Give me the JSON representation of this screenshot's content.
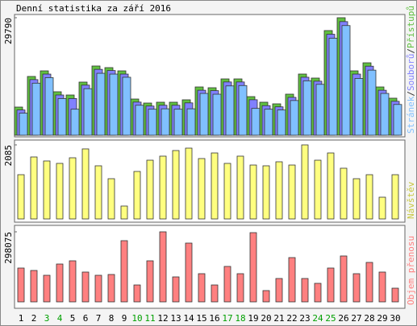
{
  "chart_data": [
    {
      "type": "bar",
      "title": "Denní statistika za září 2016",
      "legend_separator": "/",
      "series": [
        {
          "name": "Přístupů",
          "color": "#60c040",
          "values": [
            7140,
            14900,
            16320,
            11020,
            10200,
            13470,
            17550,
            17140,
            16320,
            9180,
            8160,
            8370,
            8370,
            8980,
            12240,
            12040,
            14280,
            14280,
            9790,
            8370,
            7960,
            10410,
            15510,
            14490,
            26530,
            29790,
            16320,
            18360,
            12240,
            9390
          ]
        },
        {
          "name": "Souborů",
          "color": "#8080ff",
          "values": [
            6400,
            14100,
            15500,
            10200,
            9300,
            12700,
            16700,
            16400,
            15500,
            8400,
            7400,
            7600,
            7600,
            8200,
            11400,
            11300,
            13500,
            13500,
            9000,
            7500,
            7200,
            9600,
            14700,
            13700,
            25600,
            28800,
            15500,
            17500,
            11400,
            8600
          ]
        },
        {
          "name": "Stránek",
          "color": "#80c0ff",
          "values": [
            5600,
            13200,
            14600,
            9300,
            6600,
            11800,
            15700,
            15500,
            14700,
            7600,
            6600,
            6700,
            6600,
            6700,
            10600,
            10400,
            12500,
            12600,
            6800,
            6600,
            6400,
            8800,
            13800,
            12900,
            24600,
            27800,
            14400,
            16500,
            10600,
            7800
          ]
        }
      ],
      "ylim": [
        0,
        29790
      ],
      "yticks": [
        29790
      ]
    },
    {
      "type": "bar",
      "series": [
        {
          "name": "Návštěv",
          "color": "#ffff80",
          "values": [
            1246,
            1745,
            1632,
            1564,
            1722,
            1972,
            1496,
            1133,
            363,
            1337,
            1654,
            1768,
            1926,
            1994,
            1700,
            1858,
            1564,
            1768,
            1518,
            1496,
            1609,
            1518,
            2085,
            1654,
            1858,
            1428,
            1133,
            1246,
            612,
            1246
          ]
        }
      ],
      "ylim": [
        0,
        2085
      ],
      "yticks": [
        2085
      ]
    },
    {
      "type": "bar",
      "categories": [
        "1",
        "2",
        "3",
        "4",
        "5",
        "6",
        "7",
        "8",
        "9",
        "10",
        "11",
        "12",
        "13",
        "14",
        "15",
        "16",
        "17",
        "18",
        "19",
        "20",
        "21",
        "22",
        "23",
        "24",
        "25",
        "26",
        "27",
        "28",
        "29",
        "30"
      ],
      "category_colors": [
        "#000000",
        "#000000",
        "#00a000",
        "#00a000",
        "#000000",
        "#000000",
        "#000000",
        "#000000",
        "#000000",
        "#00a000",
        "#00a000",
        "#000000",
        "#000000",
        "#000000",
        "#000000",
        "#000000",
        "#00a000",
        "#00a000",
        "#000000",
        "#000000",
        "#000000",
        "#000000",
        "#000000",
        "#00a000",
        "#00a000",
        "#000000",
        "#000000",
        "#000000",
        "#000000",
        "#000000"
      ],
      "series": [
        {
          "name": "Objem přenosu",
          "color": "#ff8080",
          "values": [
            143900,
            133600,
            113100,
            161000,
            174700,
            126800,
            113100,
            116500,
            260400,
            71900,
            174700,
            298075,
            106200,
            250100,
            119900,
            71900,
            150800,
            119900,
            294600,
            48000,
            99400,
            188400,
            99400,
            78800,
            143900,
            195300,
            119900,
            167900,
            126800,
            58200
          ]
        }
      ],
      "ylim": [
        0,
        298075
      ],
      "yticks": [
        298075
      ]
    }
  ]
}
